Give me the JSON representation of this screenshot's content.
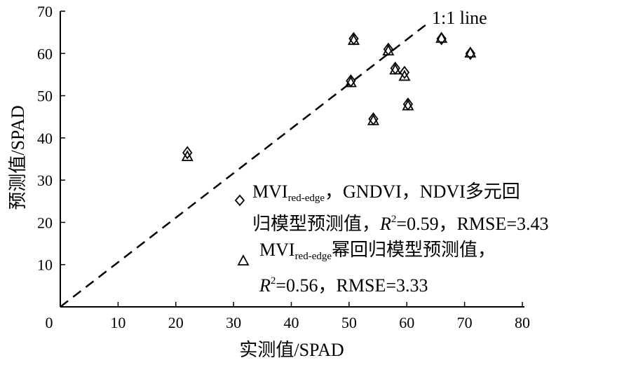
{
  "chart_data": {
    "type": "scatter",
    "xlabel": "实测值/SPAD",
    "ylabel": "预测值/SPAD",
    "xlim": [
      0,
      80
    ],
    "ylim": [
      0,
      70
    ],
    "x_ticks": [
      0,
      10,
      20,
      30,
      40,
      50,
      60,
      70,
      80
    ],
    "y_ticks": [
      10,
      20,
      30,
      40,
      50,
      60,
      70
    ],
    "grid": false,
    "reference_line": {
      "label": "1:1 line",
      "from": [
        0,
        0
      ],
      "to": [
        63.5,
        67
      ],
      "style": "dashed"
    },
    "series": [
      {
        "marker": "diamond",
        "points": [
          {
            "x": 22,
            "y": 36.5
          },
          {
            "x": 50.3,
            "y": 53.5
          },
          {
            "x": 50.8,
            "y": 63.5
          },
          {
            "x": 54.2,
            "y": 44.5
          },
          {
            "x": 56.8,
            "y": 61
          },
          {
            "x": 58,
            "y": 56.5
          },
          {
            "x": 59.6,
            "y": 55.5
          },
          {
            "x": 60.2,
            "y": 48
          },
          {
            "x": 66,
            "y": 63.5
          },
          {
            "x": 71,
            "y": 60
          }
        ]
      },
      {
        "marker": "triangle",
        "points": [
          {
            "x": 22,
            "y": 35.5
          },
          {
            "x": 50.3,
            "y": 53
          },
          {
            "x": 50.8,
            "y": 63
          },
          {
            "x": 54.2,
            "y": 44
          },
          {
            "x": 56.8,
            "y": 60.5
          },
          {
            "x": 58,
            "y": 56
          },
          {
            "x": 59.6,
            "y": 54.5
          },
          {
            "x": 60.2,
            "y": 47.5
          },
          {
            "x": 66,
            "y": 63.5
          },
          {
            "x": 71,
            "y": 60
          }
        ]
      }
    ],
    "legend": {
      "placement": "lower-right",
      "entries": [
        {
          "marker": "diamond",
          "line1_main": "MVI",
          "line1_sub": "red-edge",
          "line1_rest": "，GNDVI，NDVI多元回",
          "line2_pre": "归模型预测值，",
          "line2_r": "R",
          "line2_sup": "2",
          "line2_rest": "=0.59，RMSE=3.43"
        },
        {
          "marker": "triangle",
          "line1_main": "MVI",
          "line1_sub": "red-edge",
          "line1_rest": "幂回归模型预测值，",
          "line2_r": "R",
          "line2_sup": "2",
          "line2_rest": "=0.56，RMSE=3.33"
        }
      ]
    }
  }
}
